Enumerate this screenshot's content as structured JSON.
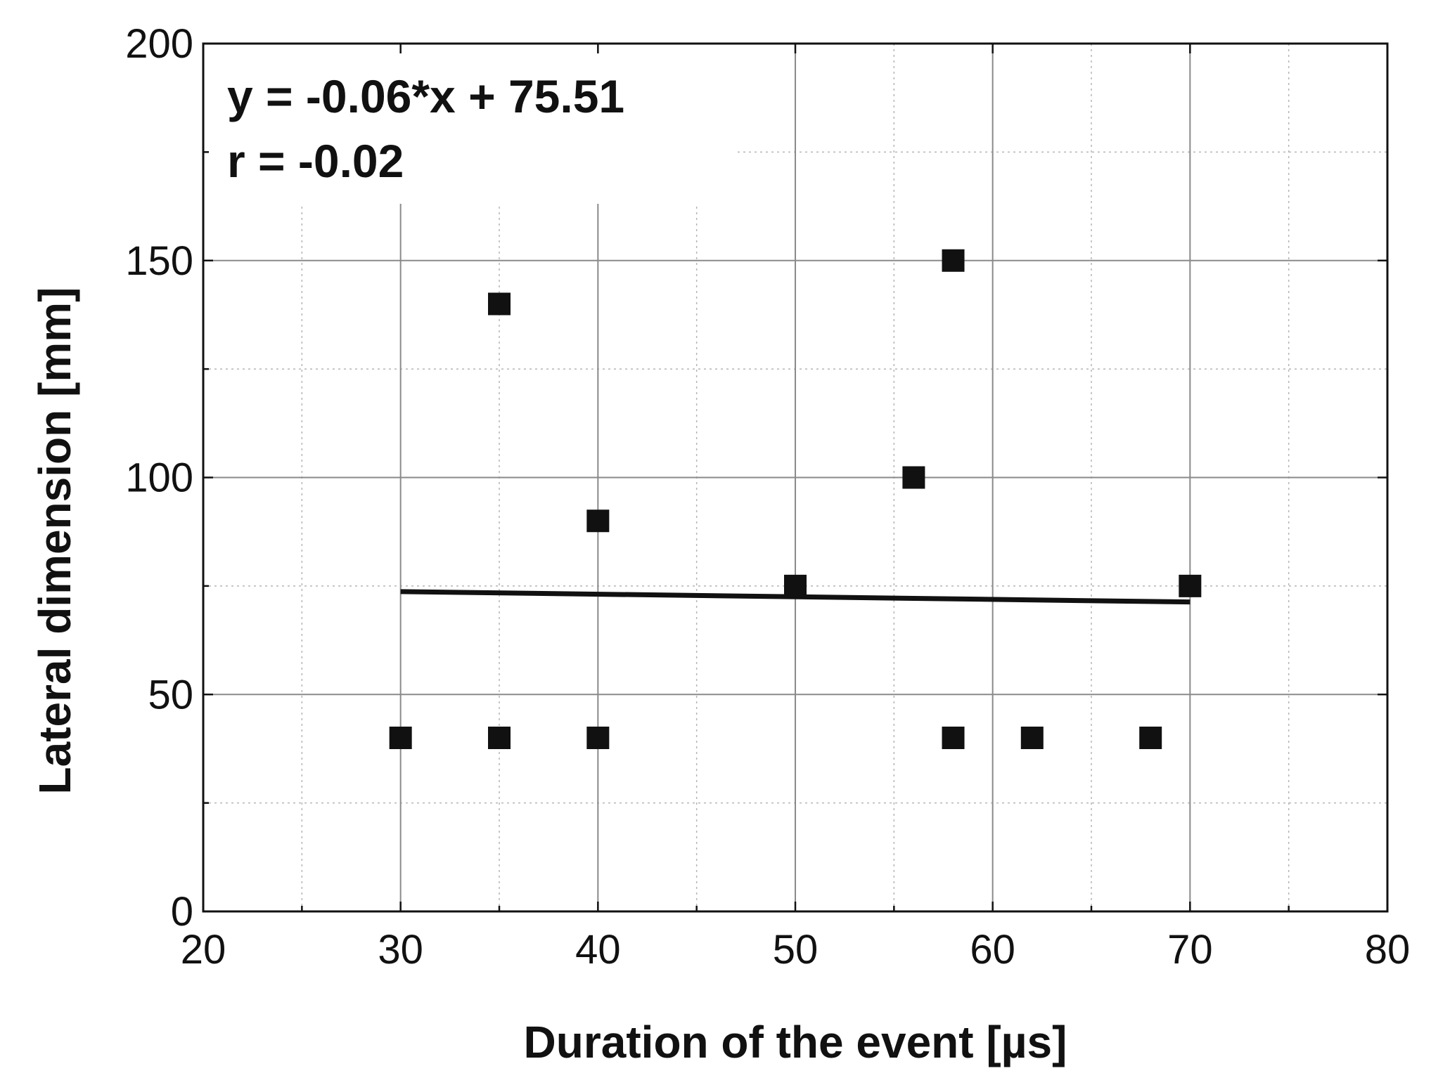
{
  "chart_data": {
    "type": "scatter",
    "xlabel": "Duration of the event [µs]",
    "ylabel": "Lateral dimension [mm]",
    "xlim": [
      20,
      80
    ],
    "ylim": [
      0,
      200
    ],
    "xticks": [
      20,
      30,
      40,
      50,
      60,
      70,
      80
    ],
    "yticks": [
      0,
      50,
      100,
      150,
      200
    ],
    "grid": true,
    "points": [
      {
        "x": 30,
        "y": 40
      },
      {
        "x": 35,
        "y": 40
      },
      {
        "x": 35,
        "y": 140
      },
      {
        "x": 40,
        "y": 40
      },
      {
        "x": 40,
        "y": 90
      },
      {
        "x": 50,
        "y": 75
      },
      {
        "x": 56,
        "y": 100
      },
      {
        "x": 58,
        "y": 150
      },
      {
        "x": 58,
        "y": 40
      },
      {
        "x": 62,
        "y": 40
      },
      {
        "x": 68,
        "y": 40
      },
      {
        "x": 70,
        "y": 75
      }
    ],
    "fit_line": {
      "slope": -0.06,
      "intercept": 75.51,
      "x_range": [
        30,
        70
      ]
    },
    "annotations": {
      "equation": "y = -0.06*x + 75.51",
      "r": "r = -0.02"
    }
  }
}
